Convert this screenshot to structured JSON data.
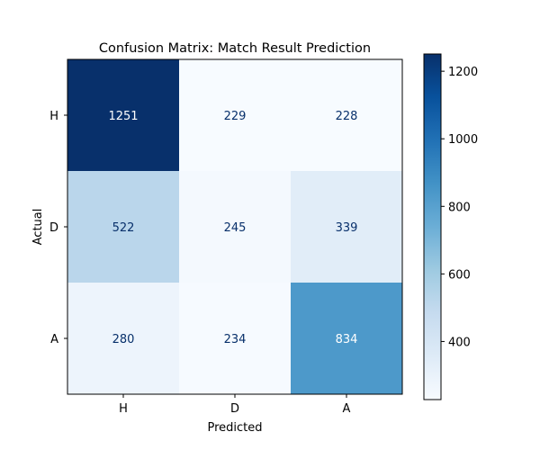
{
  "chart_data": {
    "type": "heatmap",
    "title": "Confusion Matrix: Match Result Prediction",
    "xlabel": "Predicted",
    "ylabel": "Actual",
    "x_categories": [
      "H",
      "D",
      "A"
    ],
    "y_categories": [
      "H",
      "D",
      "A"
    ],
    "values": [
      [
        1251,
        229,
        228
      ],
      [
        522,
        245,
        339
      ],
      [
        280,
        234,
        834
      ]
    ],
    "colormap": "Blues",
    "color_range": [
      228,
      1251
    ],
    "colorbar_ticks": [
      400,
      600,
      800,
      1000,
      1200
    ],
    "grid": false,
    "label_color_dark_cells": "#ffffff",
    "label_color_light_cells": "#08306b"
  }
}
